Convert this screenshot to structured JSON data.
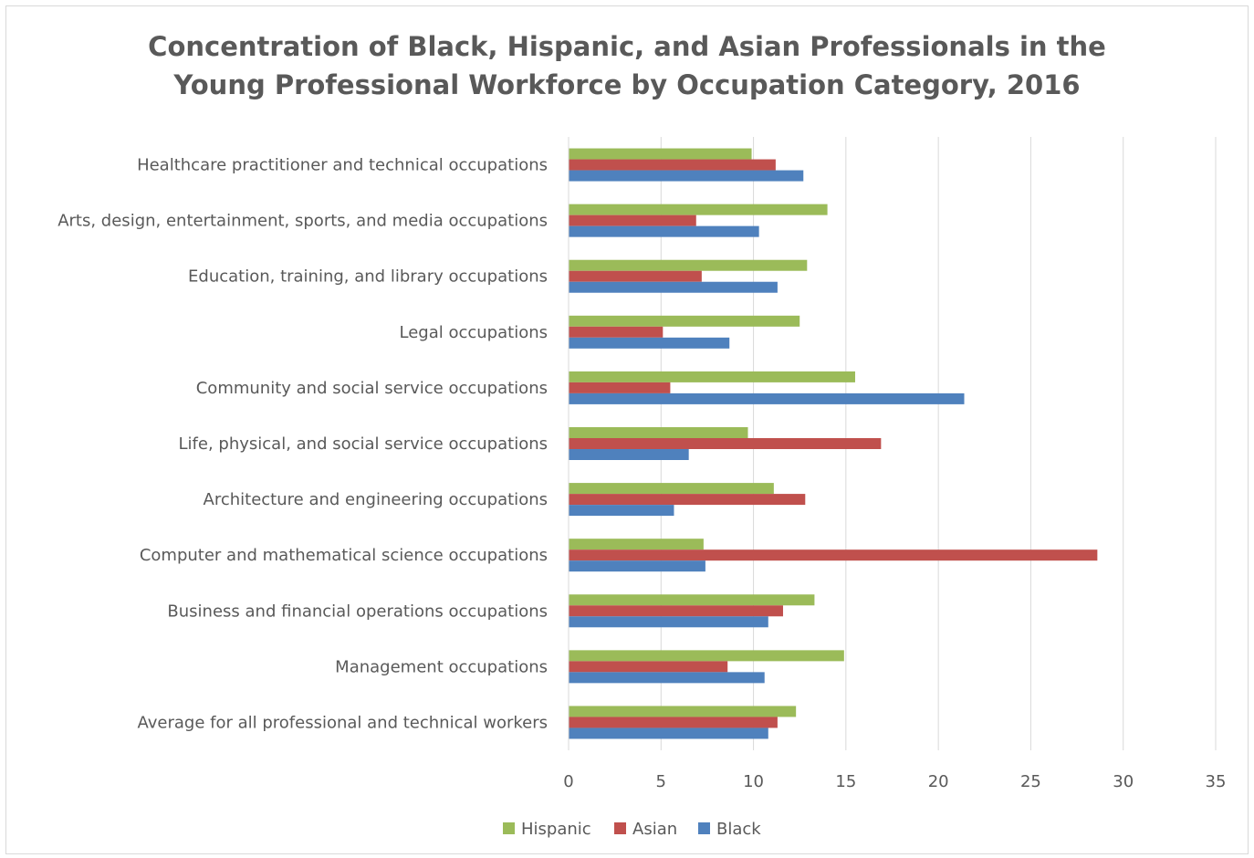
{
  "chart_data": {
    "type": "bar",
    "orientation": "horizontal",
    "title_lines": [
      "Concentration of Black, Hispanic, and Asian Professionals in the",
      "Young Professional Workforce by Occupation Category, 2016"
    ],
    "categories": [
      "Healthcare practitioner and technical occupations",
      "Arts, design, entertainment, sports, and media occupations",
      "Education, training, and library occupations",
      "Legal occupations",
      "Community and social service occupations",
      "Life, physical, and social service occupations",
      "Architecture and engineering occupations",
      "Computer and mathematical science occupations",
      "Business and financial operations occupations",
      "Management occupations",
      "Average for all professional and technical workers"
    ],
    "series": [
      {
        "name": "Hispanic",
        "color": "#9bbb59",
        "values": [
          9.9,
          14.0,
          12.9,
          12.5,
          15.5,
          9.7,
          11.1,
          7.3,
          13.3,
          14.9,
          12.3
        ]
      },
      {
        "name": "Asian",
        "color": "#c0504d",
        "values": [
          11.2,
          6.9,
          7.2,
          5.1,
          5.5,
          16.9,
          12.8,
          28.6,
          11.6,
          8.6,
          11.3
        ]
      },
      {
        "name": "Black",
        "color": "#4f81bd",
        "values": [
          12.7,
          10.3,
          11.3,
          8.7,
          21.4,
          6.5,
          5.7,
          7.4,
          10.8,
          10.6,
          10.8
        ]
      }
    ],
    "xticks": [
      "0",
      "5",
      "10",
      "15",
      "20",
      "25",
      "30",
      "35"
    ],
    "xlim": [
      0,
      35
    ],
    "grid": true,
    "legend_position": "bottom"
  }
}
